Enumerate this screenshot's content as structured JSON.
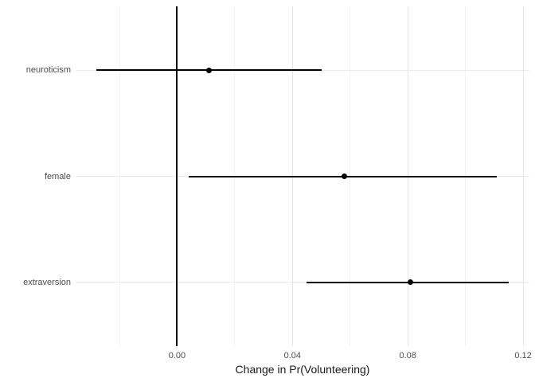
{
  "chart_data": {
    "type": "pointrange",
    "title": "",
    "xlabel": "Change in Pr(Volunteering)",
    "ylabel": "",
    "xlim": [
      -0.0352,
      0.1222
    ],
    "x_major_ticks": [
      {
        "value": 0.0,
        "label": "0.00"
      },
      {
        "value": 0.04,
        "label": "0.04"
      },
      {
        "value": 0.08,
        "label": "0.08"
      },
      {
        "value": 0.12,
        "label": "0.12"
      }
    ],
    "x_minor_gridlines": [
      -0.02,
      0.02,
      0.06,
      0.1
    ],
    "zero_line_x": 0,
    "categories": [
      "neuroticism",
      "female",
      "extraversion"
    ],
    "series": [
      {
        "category": "neuroticism",
        "estimate": 0.011,
        "ci_low": -0.028,
        "ci_high": 0.05
      },
      {
        "category": "female",
        "estimate": 0.058,
        "ci_low": 0.004,
        "ci_high": 0.111
      },
      {
        "category": "extraversion",
        "estimate": 0.081,
        "ci_low": 0.045,
        "ci_high": 0.115
      }
    ],
    "legend": "none",
    "grid": "on",
    "colors": {
      "background": "#ffffff",
      "point": "#000000",
      "interval_line": "#000000",
      "zero_line": "#000000",
      "grid_major": "#e4e4e4",
      "grid_minor": "#f1f1f1",
      "grid_row": "#ebebeb",
      "axis_text": "#4d4d4d",
      "axis_title": "#1a1a1a"
    }
  }
}
